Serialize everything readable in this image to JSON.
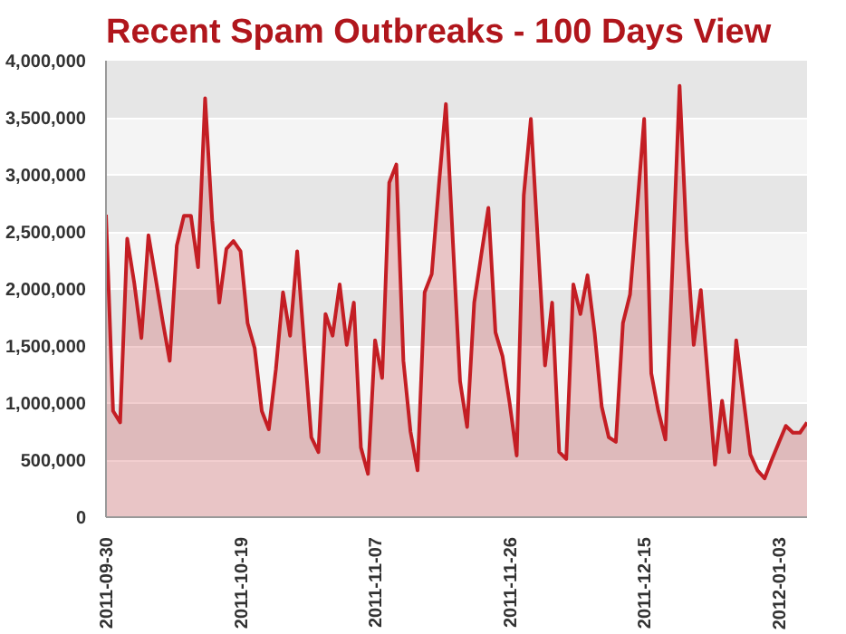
{
  "chart_data": {
    "type": "area",
    "title": "Recent Spam Outbreaks - 100 Days View",
    "x": [
      "2011-09-30",
      "2011-10-01",
      "2011-10-02",
      "2011-10-03",
      "2011-10-04",
      "2011-10-05",
      "2011-10-06",
      "2011-10-07",
      "2011-10-08",
      "2011-10-09",
      "2011-10-10",
      "2011-10-11",
      "2011-10-12",
      "2011-10-13",
      "2011-10-14",
      "2011-10-15",
      "2011-10-16",
      "2011-10-17",
      "2011-10-18",
      "2011-10-19",
      "2011-10-20",
      "2011-10-21",
      "2011-10-22",
      "2011-10-23",
      "2011-10-24",
      "2011-10-25",
      "2011-10-26",
      "2011-10-27",
      "2011-10-28",
      "2011-10-29",
      "2011-10-30",
      "2011-10-31",
      "2011-11-01",
      "2011-11-02",
      "2011-11-03",
      "2011-11-04",
      "2011-11-05",
      "2011-11-06",
      "2011-11-07",
      "2011-11-08",
      "2011-11-09",
      "2011-11-10",
      "2011-11-11",
      "2011-11-12",
      "2011-11-13",
      "2011-11-14",
      "2011-11-15",
      "2011-11-16",
      "2011-11-17",
      "2011-11-18",
      "2011-11-19",
      "2011-11-20",
      "2011-11-21",
      "2011-11-22",
      "2011-11-23",
      "2011-11-24",
      "2011-11-25",
      "2011-11-26",
      "2011-11-27",
      "2011-11-28",
      "2011-11-29",
      "2011-11-30",
      "2011-12-01",
      "2011-12-02",
      "2011-12-03",
      "2011-12-04",
      "2011-12-05",
      "2011-12-06",
      "2011-12-07",
      "2011-12-08",
      "2011-12-09",
      "2011-12-10",
      "2011-12-11",
      "2011-12-12",
      "2011-12-13",
      "2011-12-14",
      "2011-12-15",
      "2011-12-16",
      "2011-12-17",
      "2011-12-18",
      "2011-12-19",
      "2011-12-20",
      "2011-12-21",
      "2011-12-22",
      "2011-12-23",
      "2011-12-24",
      "2011-12-25",
      "2011-12-26",
      "2011-12-27",
      "2011-12-28",
      "2011-12-29",
      "2011-12-30",
      "2011-12-31",
      "2012-01-01",
      "2012-01-02",
      "2012-01-03",
      "2012-01-04",
      "2012-01-05",
      "2012-01-06",
      "2012-01-07"
    ],
    "series": [
      {
        "color": "#c41e24",
        "values": [
          2650000,
          930000,
          830000,
          2440000,
          2050000,
          1570000,
          2470000,
          2100000,
          1720000,
          1370000,
          2380000,
          2640000,
          2640000,
          2190000,
          3670000,
          2600000,
          1880000,
          2350000,
          2420000,
          2330000,
          1700000,
          1480000,
          930000,
          770000,
          1300000,
          1970000,
          1590000,
          2330000,
          1500000,
          700000,
          570000,
          1780000,
          1590000,
          2040000,
          1510000,
          1880000,
          610000,
          380000,
          1550000,
          1220000,
          2930000,
          3090000,
          1370000,
          750000,
          410000,
          1970000,
          2130000,
          2900000,
          3620000,
          2400000,
          1190000,
          790000,
          1880000,
          2300000,
          2710000,
          1620000,
          1410000,
          1000000,
          540000,
          2820000,
          3490000,
          2400000,
          1330000,
          1880000,
          570000,
          510000,
          2040000,
          1780000,
          2120000,
          1620000,
          970000,
          700000,
          660000,
          1700000,
          1950000,
          2700000,
          3490000,
          1260000,
          930000,
          680000,
          2200000,
          3780000,
          2420000,
          1510000,
          1990000,
          1220000,
          460000,
          1020000,
          570000,
          1550000,
          1050000,
          550000,
          410000,
          340000,
          500000,
          650000,
          800000,
          740000,
          740000,
          830000
        ]
      }
    ],
    "xlim": [
      "2011-09-30",
      "2012-01-07"
    ],
    "xticks": [
      "2011-09-30",
      "2011-10-19",
      "2011-11-07",
      "2011-11-26",
      "2011-12-15",
      "2012-01-03"
    ],
    "ylim": [
      0,
      4000000
    ],
    "yticks": [
      {
        "value": 0,
        "label": "0"
      },
      {
        "value": 500000,
        "label": "500,000"
      },
      {
        "value": 1000000,
        "label": "1,000,000"
      },
      {
        "value": 1500000,
        "label": "1,500,000"
      },
      {
        "value": 2000000,
        "label": "2,000,000"
      },
      {
        "value": 2500000,
        "label": "2,500,000"
      },
      {
        "value": 3000000,
        "label": "3,000,000"
      },
      {
        "value": 3500000,
        "label": "3,500,000"
      },
      {
        "value": 4000000,
        "label": "4,000,000"
      }
    ],
    "grid": "y",
    "marker": "none",
    "line_style": "solid"
  }
}
